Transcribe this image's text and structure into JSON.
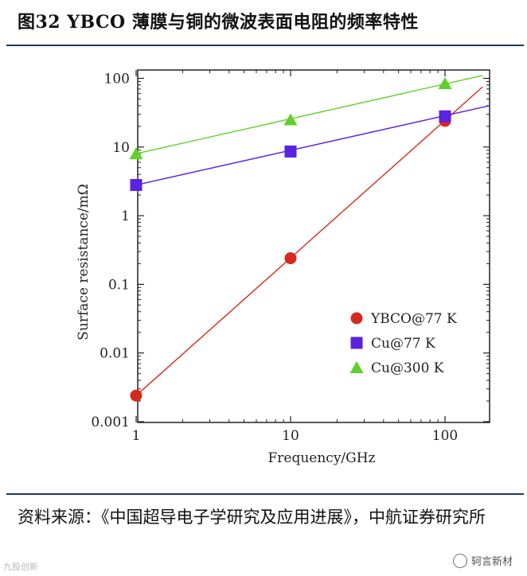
{
  "header": {
    "title": "图32 YBCO 薄膜与铜的微波表面电阻的频率特性"
  },
  "footer": {
    "source": "资料来源：《中国超导电子学研究及应用进展》，中航证券研究所",
    "watermark": "轲言新材",
    "watermark_left": "九股创新"
  },
  "chart_data": {
    "type": "scatter",
    "title": "图32 YBCO 薄膜与铜的微波表面电阻的频率特性",
    "xlabel": "Frequency/GHz",
    "ylabel": "Surface resistance/mΩ",
    "xscale": "log",
    "yscale": "log",
    "xlim": [
      1,
      180
    ],
    "ylim": [
      0.001,
      150
    ],
    "xticks": [
      1,
      10,
      100
    ],
    "xtick_labels": [
      "1",
      "10",
      "100"
    ],
    "yticks": [
      0.001,
      0.01,
      0.1,
      1,
      10,
      100
    ],
    "ytick_labels": [
      "0.001",
      "0.01",
      "0.1",
      "1",
      "10",
      "100"
    ],
    "legend_position": "lower-right",
    "series": [
      {
        "name": "YBCO@77 K",
        "marker": "circle",
        "color": "#d42a1e",
        "x": [
          1,
          10,
          100
        ],
        "values": [
          0.0024,
          0.24,
          24
        ],
        "fit_line": {
          "x": [
            1,
            175
          ],
          "y": [
            0.0024,
            75
          ]
        }
      },
      {
        "name": "Cu@77 K",
        "marker": "square",
        "color": "#5b22e0",
        "x": [
          1,
          10,
          100
        ],
        "values": [
          2.8,
          8.6,
          28
        ],
        "fit_line": {
          "x": [
            1,
            200
          ],
          "y": [
            2.8,
            40
          ]
        }
      },
      {
        "name": "Cu@300 K",
        "marker": "triangle",
        "color": "#5fd02a",
        "x": [
          1,
          10,
          100
        ],
        "values": [
          8,
          25,
          84
        ],
        "fit_line": {
          "x": [
            1,
            175
          ],
          "y": [
            8,
            110
          ]
        }
      }
    ]
  }
}
